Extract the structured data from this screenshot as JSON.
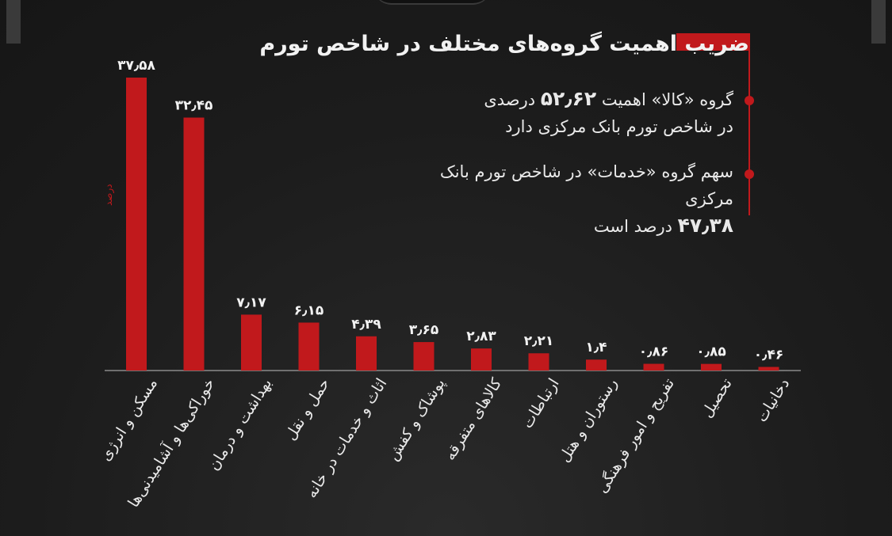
{
  "header": {
    "title": "ضریب اهمیت گروه‌های مختلف در شاخص تورم"
  },
  "notes": [
    {
      "pre": "گروه «کالا» اهمیت ",
      "value": "۵۲٫۶۲",
      "post": " درصدی",
      "line2": "در شاخص تورم بانک مرکزی دارد"
    },
    {
      "pre": "سهم گروه «خدمات» در شاخص تورم بانک مرکزی",
      "value": "۴۷٫۳۸",
      "post": " درصد است"
    }
  ],
  "unit": "درصد",
  "colors": {
    "accent": "#c1191c",
    "background": "#1e1e1e",
    "text": "#e9e9e9"
  },
  "chart_data": {
    "type": "bar",
    "categories": [
      "مسکن و انرژی",
      "خوراکی‌ها و آشامیدنی‌ها",
      "بهداشت و درمان",
      "حمل و نقل",
      "اثاث و خدمات در خانه",
      "پوشاک و کفش",
      "کالاهای متفرقه",
      "ارتباطات",
      "رستوران و هتل",
      "تفریح و امور فرهنگی",
      "تحصیل",
      "دخانیات"
    ],
    "values": [
      37.58,
      32.45,
      7.17,
      6.15,
      4.39,
      3.65,
      2.83,
      2.21,
      1.4,
      0.86,
      0.85,
      0.46
    ],
    "value_labels": [
      "۳۷٫۵۸",
      "۳۲٫۴۵",
      "۷٫۱۷",
      "۶٫۱۵",
      "۴٫۳۹",
      "۳٫۶۵",
      "۲٫۸۳",
      "۲٫۲۱",
      "۱٫۴",
      "۰٫۸۶",
      "۰٫۸۵",
      "۰٫۴۶"
    ],
    "ylabel": "درصد",
    "ylim": [
      0,
      37.58
    ],
    "grid": false,
    "legend": "none"
  }
}
